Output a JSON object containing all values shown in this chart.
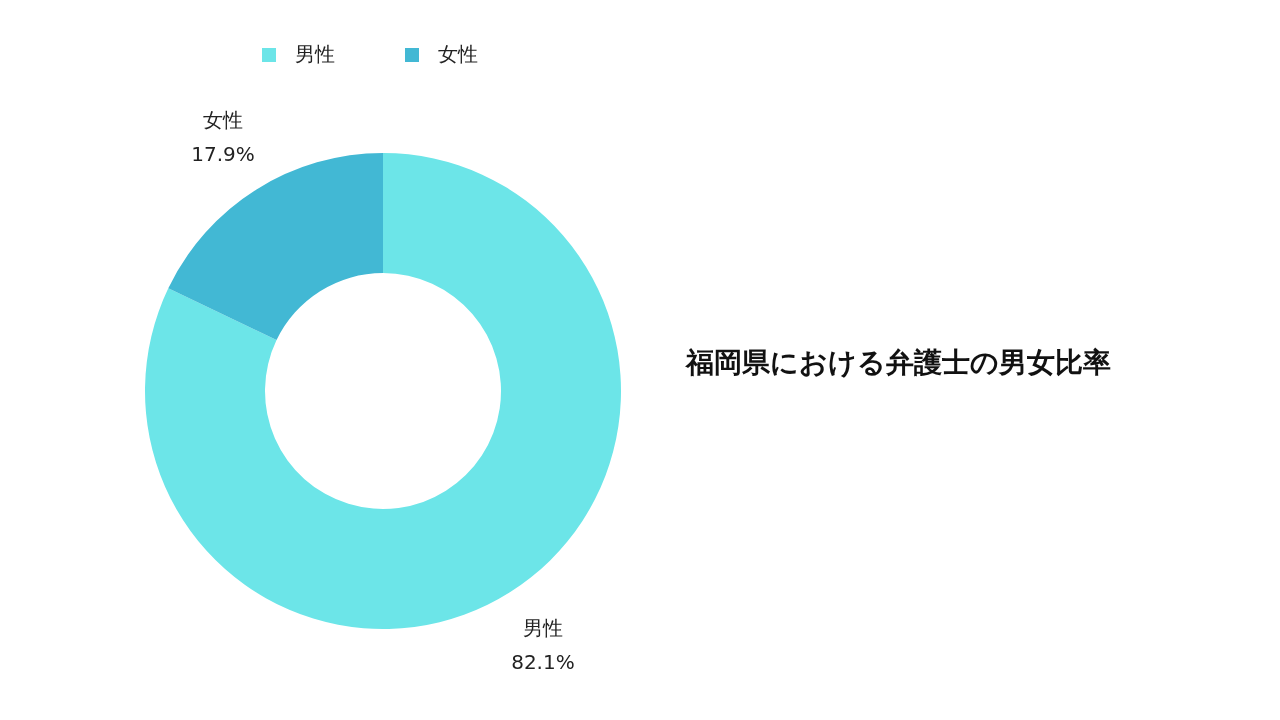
{
  "chart_data": {
    "type": "donut",
    "title": "福岡県における弁護士の男女比率",
    "categories": [
      "男性",
      "女性"
    ],
    "values": [
      82.1,
      17.9
    ],
    "colors": [
      "#6ce5e8",
      "#42b8d4"
    ],
    "value_labels": [
      "82.1%",
      "17.9%"
    ],
    "legend": "top"
  }
}
